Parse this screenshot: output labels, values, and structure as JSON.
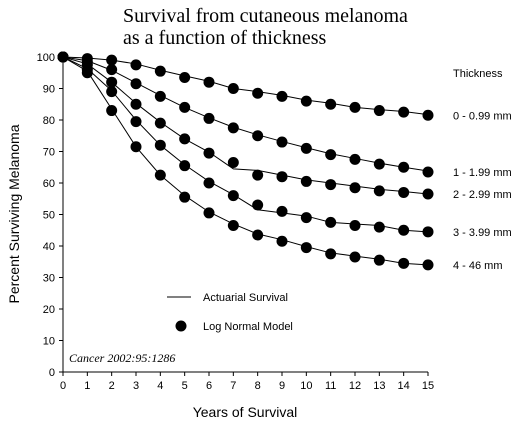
{
  "chart_data": {
    "type": "line",
    "title": "Survival from cutaneous melanoma",
    "subtitle": "as a function of thickness",
    "xlabel": "Years of Survival",
    "ylabel": "Percent Surviving Melanoma",
    "xlim": [
      0,
      15
    ],
    "ylim": [
      0,
      100
    ],
    "x_ticks": [
      "0",
      "1",
      "2",
      "3",
      "4",
      "5",
      "6",
      "7",
      "8",
      "9",
      "10",
      "11",
      "12",
      "13",
      "14",
      "15"
    ],
    "y_ticks": [
      "0",
      "10",
      "20",
      "30",
      "40",
      "50",
      "60",
      "70",
      "80",
      "90",
      "100"
    ],
    "grid": false,
    "legend_title": "Thickness",
    "legend": {
      "line_label": "Actuarial Survival",
      "marker_label": "Log Normal Model"
    },
    "annotation": "Cancer 2002:95:1286",
    "series": [
      {
        "name": "0 - 0.99 mm",
        "model": [
          100,
          99.5,
          99,
          97.5,
          95.5,
          93.5,
          92,
          90,
          88.5,
          87.5,
          86,
          85,
          84,
          83,
          82.5,
          81.5
        ],
        "actuarial": [
          100,
          99.7,
          99,
          97.8,
          95.8,
          94,
          92.3,
          90,
          89,
          87.8,
          86.3,
          85.3,
          84,
          83.3,
          82.7,
          81.7
        ]
      },
      {
        "name": "1 - 1.99 mm",
        "model": [
          100,
          98.5,
          96,
          91.5,
          87.5,
          84,
          80.5,
          77.5,
          75,
          73,
          71,
          69,
          67.5,
          66,
          65,
          63.5
        ],
        "actuarial": [
          100,
          98.8,
          95.8,
          91.8,
          87.8,
          84,
          80.7,
          77.7,
          75.3,
          73.2,
          71.2,
          69.3,
          67.8,
          66.3,
          65,
          63.8
        ]
      },
      {
        "name": "2 - 2.99 mm",
        "model": [
          100,
          97.5,
          92,
          85,
          79,
          74,
          69.5,
          66.5,
          62.5,
          62,
          60.5,
          59.5,
          58.5,
          57.5,
          57,
          56.5
        ],
        "actuarial": [
          100,
          97.8,
          92,
          85.3,
          79.3,
          74,
          69.8,
          64.5,
          64,
          62.5,
          61,
          60,
          59,
          58,
          57.3,
          56.5
        ]
      },
      {
        "name": "3 - 3.99 mm",
        "model": [
          100,
          96,
          89,
          79.5,
          72,
          65.5,
          60,
          56,
          53,
          51,
          49,
          47.5,
          46.5,
          46,
          45,
          44.5
        ],
        "actuarial": [
          100,
          96.3,
          89.3,
          80,
          72,
          65.8,
          60.5,
          56.3,
          51.5,
          50.5,
          49.5,
          47.5,
          47,
          46.5,
          45,
          44.5
        ]
      },
      {
        "name": "4 - 46 mm",
        "model": [
          100,
          95,
          83,
          71.5,
          62.5,
          55.5,
          50.5,
          46.5,
          43.5,
          41.5,
          39.5,
          37.5,
          36.5,
          35.5,
          34.5,
          34
        ],
        "actuarial": [
          100,
          95.5,
          83.5,
          71.5,
          62.5,
          56,
          50.8,
          47,
          43.8,
          42,
          39.8,
          37.8,
          36.8,
          35.8,
          34.5,
          34
        ]
      }
    ]
  }
}
